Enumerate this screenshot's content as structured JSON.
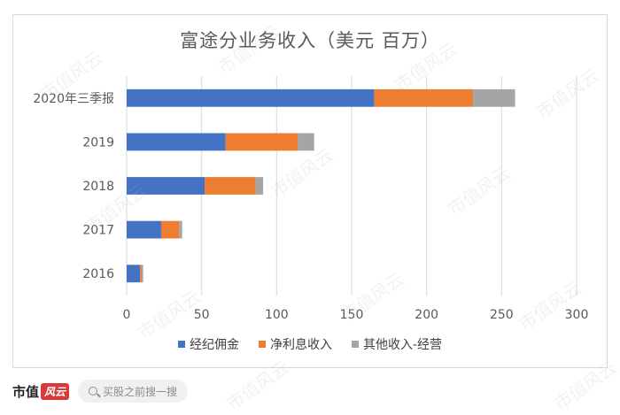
{
  "chart_data": {
    "type": "bar",
    "orientation": "horizontal",
    "stacked": true,
    "title": "富途分业务收入（美元 百万）",
    "categories": [
      "2020年三季报",
      "2019",
      "2018",
      "2017",
      "2016"
    ],
    "series": [
      {
        "name": "经纪佣金",
        "color": "#4472c4",
        "values": [
          165,
          66,
          52,
          23,
          9
        ]
      },
      {
        "name": "净利息收入",
        "color": "#ed7d31",
        "values": [
          66,
          48,
          34,
          12,
          1
        ]
      },
      {
        "name": "其他收入-经营",
        "color": "#a5a5a5",
        "values": [
          28,
          11,
          5,
          2,
          1
        ]
      }
    ],
    "xlim": [
      0,
      300
    ],
    "xticks": [
      "0",
      "50",
      "100",
      "150",
      "200",
      "250",
      "300"
    ],
    "grid": true,
    "legend_position": "bottom"
  },
  "watermark": "市值风云",
  "footer": {
    "brand_text": "市值",
    "brand_logo_text": "风云",
    "search_placeholder": "买股之前搜一搜"
  }
}
